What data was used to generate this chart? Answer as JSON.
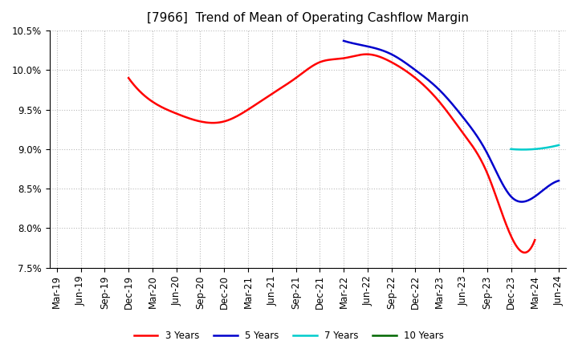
{
  "title": "[7966]  Trend of Mean of Operating Cashflow Margin",
  "title_fontsize": 11,
  "title_fontweight": "normal",
  "ylim": [
    0.075,
    0.105
  ],
  "yticks": [
    0.075,
    0.08,
    0.085,
    0.09,
    0.095,
    0.1,
    0.105
  ],
  "background_color": "#ffffff",
  "plot_bg_color": "#ffffff",
  "grid_color": "#bbbbbb",
  "series": [
    {
      "label": "3 Years",
      "color": "#ff0000",
      "y": [
        null,
        null,
        null,
        0.099,
        0.096,
        0.0945,
        0.0935,
        0.0935,
        0.095,
        0.097,
        0.099,
        0.101,
        0.1015,
        0.102,
        0.101,
        0.099,
        0.096,
        0.092,
        0.087,
        0.079,
        0.0785,
        null
      ]
    },
    {
      "label": "5 Years",
      "color": "#0000cc",
      "y": [
        null,
        null,
        null,
        null,
        null,
        null,
        null,
        null,
        null,
        null,
        null,
        null,
        0.1037,
        0.103,
        0.102,
        0.1,
        0.0975,
        0.094,
        0.0895,
        0.084,
        0.084,
        0.086
      ]
    },
    {
      "label": "7 Years",
      "color": "#00cccc",
      "y": [
        null,
        null,
        null,
        null,
        null,
        null,
        null,
        null,
        null,
        null,
        null,
        null,
        null,
        null,
        null,
        null,
        null,
        null,
        null,
        0.09,
        0.09,
        0.0905
      ]
    },
    {
      "label": "10 Years",
      "color": "#006600",
      "y": [
        null,
        null,
        null,
        null,
        null,
        null,
        null,
        null,
        null,
        null,
        null,
        null,
        null,
        null,
        null,
        null,
        null,
        null,
        null,
        null,
        null,
        null
      ]
    }
  ],
  "xtick_labels": [
    "Mar-19",
    "Jun-19",
    "Sep-19",
    "Dec-19",
    "Mar-20",
    "Jun-20",
    "Sep-20",
    "Dec-20",
    "Mar-21",
    "Jun-21",
    "Sep-21",
    "Dec-21",
    "Mar-22",
    "Jun-22",
    "Sep-22",
    "Dec-22",
    "Mar-23",
    "Jun-23",
    "Sep-23",
    "Dec-23",
    "Mar-24",
    "Jun-24"
  ],
  "legend_ncol": 4,
  "linewidth": 1.8,
  "tick_fontsize": 8.5,
  "legend_fontsize": 8.5
}
